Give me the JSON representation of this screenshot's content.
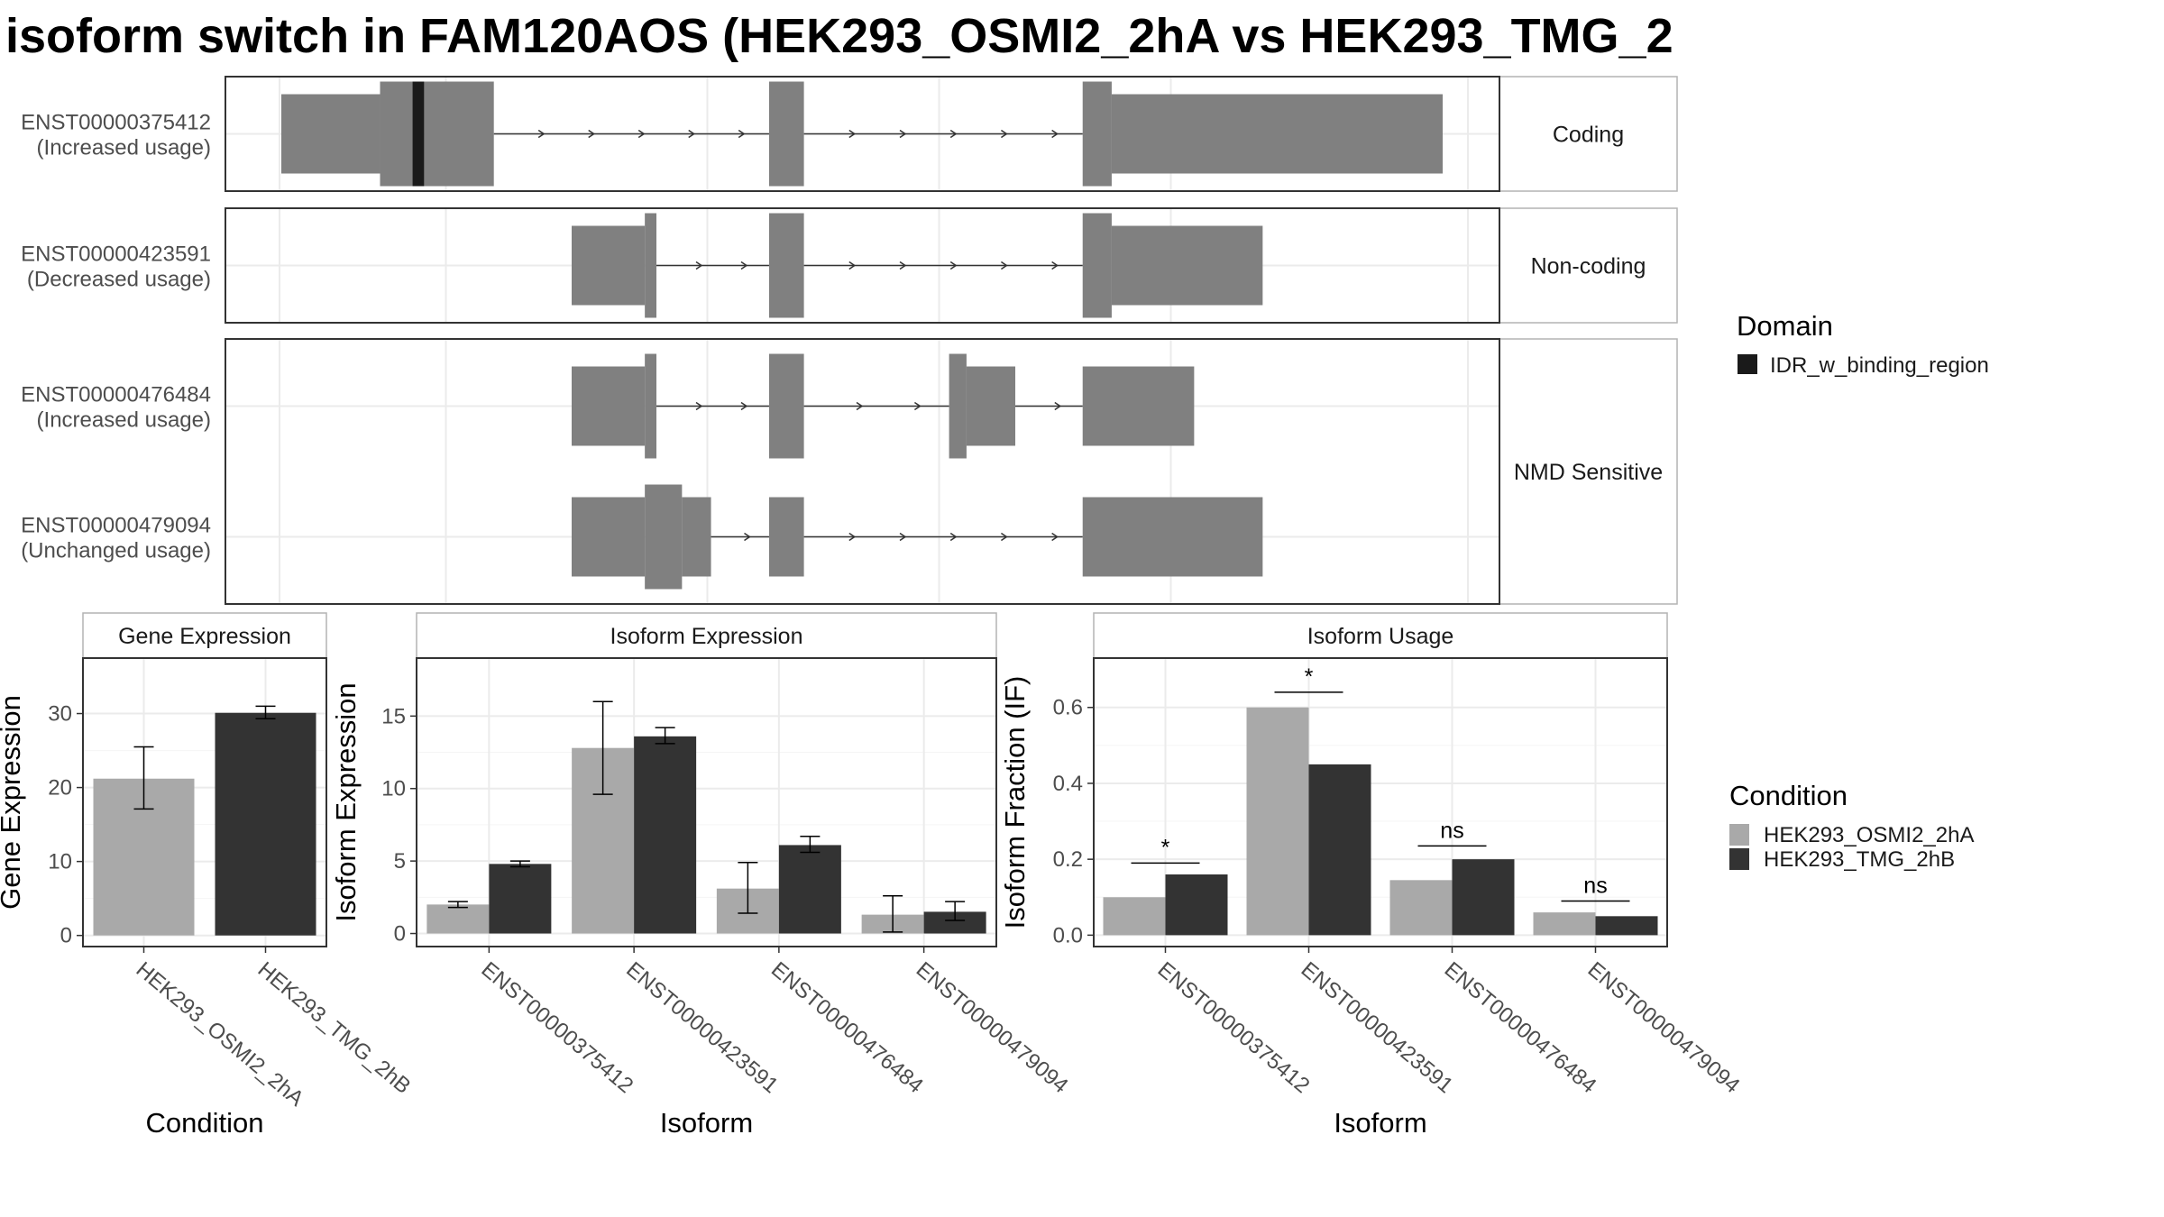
{
  "title": "isoform switch in FAM120AOS (HEK293_OSMI2_2hA vs HEK293_TMG_2",
  "colors": {
    "exon": "#808080",
    "domain": "#1a1a1a",
    "condition_a": "#a9a9a9",
    "condition_b": "#333333",
    "grid": "#ebebeb",
    "panel_border": "#333333",
    "strip_border": "#b3b3b3"
  },
  "transcript_panels": [
    {
      "category": "Coding",
      "transcripts": [
        {
          "id": "ENST00000375412",
          "usage": "(Increased usage)",
          "exons": [
            [
              0.0,
              0.085,
              "utr"
            ],
            [
              0.085,
              0.113,
              "cds"
            ],
            [
              0.113,
              0.123,
              "domain"
            ],
            [
              0.123,
              0.183,
              "cds"
            ],
            [
              0.42,
              0.45,
              "cds"
            ],
            [
              0.69,
              0.715,
              "cds"
            ],
            [
              0.715,
              1.0,
              "utr"
            ]
          ]
        }
      ]
    },
    {
      "category": "Non-coding",
      "transcripts": [
        {
          "id": "ENST00000423591",
          "usage": "(Decreased usage)",
          "exons": [
            [
              0.25,
              0.313,
              "utr"
            ],
            [
              0.313,
              0.323,
              "cds"
            ],
            [
              0.42,
              0.45,
              "cds"
            ],
            [
              0.69,
              0.715,
              "cds"
            ],
            [
              0.715,
              0.845,
              "utr"
            ]
          ]
        }
      ]
    },
    {
      "category": "NMD Sensitive",
      "transcripts": [
        {
          "id": "ENST00000476484",
          "usage": "(Increased usage)",
          "exons": [
            [
              0.25,
              0.313,
              "utr"
            ],
            [
              0.313,
              0.323,
              "cds"
            ],
            [
              0.42,
              0.45,
              "cds"
            ],
            [
              0.575,
              0.59,
              "cds"
            ],
            [
              0.59,
              0.632,
              "utr"
            ],
            [
              0.69,
              0.786,
              "utr"
            ]
          ]
        },
        {
          "id": "ENST00000479094",
          "usage": "(Unchanged usage)",
          "exons": [
            [
              0.25,
              0.313,
              "utr"
            ],
            [
              0.313,
              0.345,
              "cds"
            ],
            [
              0.345,
              0.37,
              "utr"
            ],
            [
              0.42,
              0.45,
              "utr"
            ],
            [
              0.69,
              0.845,
              "utr"
            ]
          ]
        }
      ]
    }
  ],
  "legend_domain": {
    "title": "Domain",
    "items": [
      {
        "label": "IDR_w_binding_region"
      }
    ]
  },
  "legend_condition": {
    "title": "Condition",
    "items": [
      {
        "label": "HEK293_OSMI2_2hA"
      },
      {
        "label": "HEK293_TMG_2hB"
      }
    ]
  },
  "chart_data": [
    {
      "type": "bar",
      "title": "Gene Expression",
      "categories": [
        "HEK293_OSMI2_2hA",
        "HEK293_TMG_2hB"
      ],
      "values": [
        21.2,
        30.1
      ],
      "error_low": [
        17.1,
        29.3
      ],
      "error_high": [
        25.5,
        31.0
      ],
      "xlabel": "Condition",
      "ylabel": "Gene Expression",
      "ylim": [
        -1.5,
        37.5
      ],
      "yticks": [
        0,
        10,
        20,
        30
      ]
    },
    {
      "type": "bar",
      "title": "Isoform Expression",
      "categories": [
        "ENST00000375412",
        "ENST00000423591",
        "ENST00000476484",
        "ENST00000479094"
      ],
      "series": [
        {
          "name": "HEK293_OSMI2_2hA",
          "values": [
            2.0,
            12.8,
            3.1,
            1.3
          ],
          "error_low": [
            1.8,
            9.6,
            1.4,
            0.1
          ],
          "error_high": [
            2.2,
            16.0,
            4.9,
            2.6
          ]
        },
        {
          "name": "HEK293_TMG_2hB",
          "values": [
            4.8,
            13.6,
            6.1,
            1.5
          ],
          "error_low": [
            4.6,
            13.1,
            5.6,
            0.9
          ],
          "error_high": [
            5.0,
            14.2,
            6.7,
            2.2
          ]
        }
      ],
      "xlabel": "Isoform",
      "ylabel": "Isoform Expression",
      "ylim": [
        -0.9,
        19.0
      ],
      "yticks": [
        0,
        5,
        10,
        15
      ]
    },
    {
      "type": "bar",
      "title": "Isoform Usage",
      "categories": [
        "ENST00000375412",
        "ENST00000423591",
        "ENST00000476484",
        "ENST00000479094"
      ],
      "series": [
        {
          "name": "HEK293_OSMI2_2hA",
          "values": [
            0.1,
            0.6,
            0.145,
            0.06
          ]
        },
        {
          "name": "HEK293_TMG_2hB",
          "values": [
            0.16,
            0.45,
            0.2,
            0.05
          ]
        }
      ],
      "significance": [
        "*",
        "*",
        "ns",
        "ns"
      ],
      "significance_y": [
        0.19,
        0.64,
        0.235,
        0.09
      ],
      "xlabel": "Isoform",
      "ylabel": "Isoform Fraction (IF)",
      "ylim": [
        -0.03,
        0.73
      ],
      "yticks": [
        0.0,
        0.2,
        0.4,
        0.6
      ],
      "ytick_labels": [
        "0.0",
        "0.2",
        "0.4",
        "0.6"
      ]
    }
  ]
}
